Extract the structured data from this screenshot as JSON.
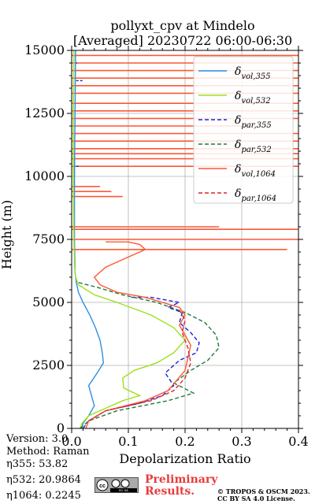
{
  "chart_data": {
    "type": "line",
    "title": "pollyxt_cpv at Mindelo",
    "subtitle": "[Averaged] 20230722 06:00-06:30",
    "xlabel": "Depolarization Ratio",
    "ylabel": "Height (m)",
    "xlim": [
      0,
      0.4
    ],
    "ylim": [
      0,
      15000
    ],
    "xticks": [
      "0.0",
      "0.1",
      "0.2",
      "0.3",
      "0.4"
    ],
    "yticks": [
      "0",
      "2500",
      "5000",
      "7500",
      "10000",
      "12500",
      "15000"
    ],
    "grid": true,
    "legend_position": "top-right",
    "series": [
      {
        "name": "δ_vol,355",
        "sym": "δ",
        "sub": "vol,355",
        "color": "#2b8fe3",
        "dash": "",
        "x": [
          0.018,
          0.02,
          0.03,
          0.04,
          0.035,
          0.03,
          0.045,
          0.056,
          0.054,
          0.05,
          0.042,
          0.032,
          0.02,
          0.012,
          0.008,
          0.006,
          0.005,
          0.005,
          0.006,
          0.007
        ],
        "y": [
          0,
          200,
          500,
          900,
          1300,
          1700,
          2200,
          2600,
          3000,
          3500,
          4000,
          4500,
          5000,
          5400,
          5800,
          6200,
          7500,
          10000,
          12500,
          15000
        ]
      },
      {
        "name": "δ_vol,532",
        "sym": "δ",
        "sub": "vol,532",
        "color": "#9be219",
        "dash": "",
        "x": [
          0.015,
          0.018,
          0.03,
          0.06,
          0.09,
          0.12,
          0.092,
          0.09,
          0.11,
          0.15,
          0.18,
          0.2,
          0.18,
          0.14,
          0.08,
          0.04,
          0.012,
          0.007,
          0.005,
          0.004,
          0.003,
          0.003,
          0.004
        ],
        "y": [
          0,
          200,
          500,
          800,
          1100,
          1300,
          1600,
          2000,
          2300,
          2600,
          3000,
          3500,
          4000,
          4500,
          5000,
          5300,
          5700,
          6000,
          6500,
          7500,
          10000,
          12500,
          15000
        ]
      },
      {
        "name": "δ_par,355",
        "sym": "δ",
        "sub": "par,355",
        "color": "#1a23d6",
        "dash": "5,3",
        "x": [
          0.02,
          0.03,
          0.06,
          0.12,
          0.16,
          0.18,
          0.165,
          0.19,
          0.22,
          0.225,
          0.21,
          0.19,
          0.195,
          0.17,
          0.19,
          0.14,
          0.105
        ],
        "y": [
          0,
          300,
          700,
          1000,
          1300,
          1700,
          2200,
          2700,
          3000,
          3400,
          3800,
          4200,
          4600,
          4800,
          5000,
          5200,
          5200
        ]
      },
      {
        "name": "δ_par,532",
        "sym": "δ",
        "sub": "par,532",
        "color": "#1f7a3a",
        "dash": "5,3",
        "x": [
          0.015,
          0.03,
          0.08,
          0.17,
          0.215,
          0.18,
          0.21,
          0.24,
          0.26,
          0.255,
          0.235,
          0.2,
          0.15,
          0.09,
          0.045,
          0.01
        ],
        "y": [
          0,
          300,
          700,
          1100,
          1400,
          1800,
          2300,
          2700,
          3200,
          3700,
          4200,
          4600,
          5000,
          5300,
          5600,
          5800
        ]
      },
      {
        "name": "δ_vol,1064",
        "sym": "δ",
        "sub": "vol,1064",
        "color": "#ff5733",
        "dash": "",
        "x": [
          0.025,
          0.03,
          0.06,
          0.13,
          0.17,
          0.185,
          0.2,
          0.205,
          0.21,
          0.2,
          0.19,
          0.2,
          0.19,
          0.16,
          0.13,
          0.08,
          0.05,
          0.04,
          0.06,
          0.1,
          0.13,
          0.12,
          0.1,
          0.08,
          0.06
        ],
        "y": [
          0,
          300,
          700,
          1100,
          1500,
          1900,
          2300,
          2800,
          3300,
          3700,
          4100,
          4500,
          4800,
          5000,
          5200,
          5400,
          5700,
          6000,
          6400,
          6800,
          7100,
          7300,
          7400,
          7400,
          7400
        ]
      },
      {
        "name": "δ_par,1064",
        "sym": "δ",
        "sub": "par,1064",
        "color": "#d62728",
        "dash": "5,3",
        "x": [
          0.03,
          0.06,
          0.14,
          0.18,
          0.2,
          0.21,
          0.205,
          0.195,
          0.2,
          0.19
        ],
        "y": [
          300,
          700,
          1100,
          1500,
          2000,
          2600,
          3200,
          3800,
          4300,
          4700
        ]
      }
    ],
    "noise_series": {
      "color": "#ff5733",
      "from_x": 0.0,
      "strips": [
        {
          "y": 7500,
          "x": 0.4
        },
        {
          "y": 7900,
          "x": 0.4
        },
        {
          "y": 7100,
          "x": 0.38
        },
        {
          "y": 8000,
          "x": 0.26
        },
        {
          "y": 9200,
          "x": 0.09
        },
        {
          "y": 9400,
          "x": 0.07
        },
        {
          "y": 9600,
          "x": 0.05
        },
        {
          "y": 10400,
          "x": 0.4
        },
        {
          "y": 10700,
          "x": 0.4
        },
        {
          "y": 10900,
          "x": 0.4
        },
        {
          "y": 11100,
          "x": 0.4
        },
        {
          "y": 11400,
          "x": 0.4
        },
        {
          "y": 11700,
          "x": 0.4
        },
        {
          "y": 12000,
          "x": 0.35
        },
        {
          "y": 12300,
          "x": 0.4
        },
        {
          "y": 12600,
          "x": 0.4
        },
        {
          "y": 12900,
          "x": 0.4
        },
        {
          "y": 13300,
          "x": 0.4
        },
        {
          "y": 13600,
          "x": 0.4
        },
        {
          "y": 13900,
          "x": 0.4
        },
        {
          "y": 14200,
          "x": 0.4
        },
        {
          "y": 14500,
          "x": 0.4
        },
        {
          "y": 14800,
          "x": 0.4
        }
      ]
    },
    "noise_blue": [
      {
        "y": 13800,
        "x": 0.02
      },
      {
        "y": 10400,
        "x": 0.015
      },
      {
        "y": 14500,
        "x": 0.01
      }
    ]
  },
  "info": {
    "version": "Version: 3.0",
    "method": "Method: Raman",
    "eta355": "η355:  53.82",
    "eta532": "η532: 20.9864",
    "eta1064": "η1064: 0.2245"
  },
  "footer": {
    "prelim_line1": "Preliminary",
    "prelim_line2": "Results.",
    "copyright_line1": "© TROPOS & OSCM 2023.",
    "copyright_line2": "CC BY SA 4.0 License.",
    "license_badge": "CC BY SA"
  }
}
